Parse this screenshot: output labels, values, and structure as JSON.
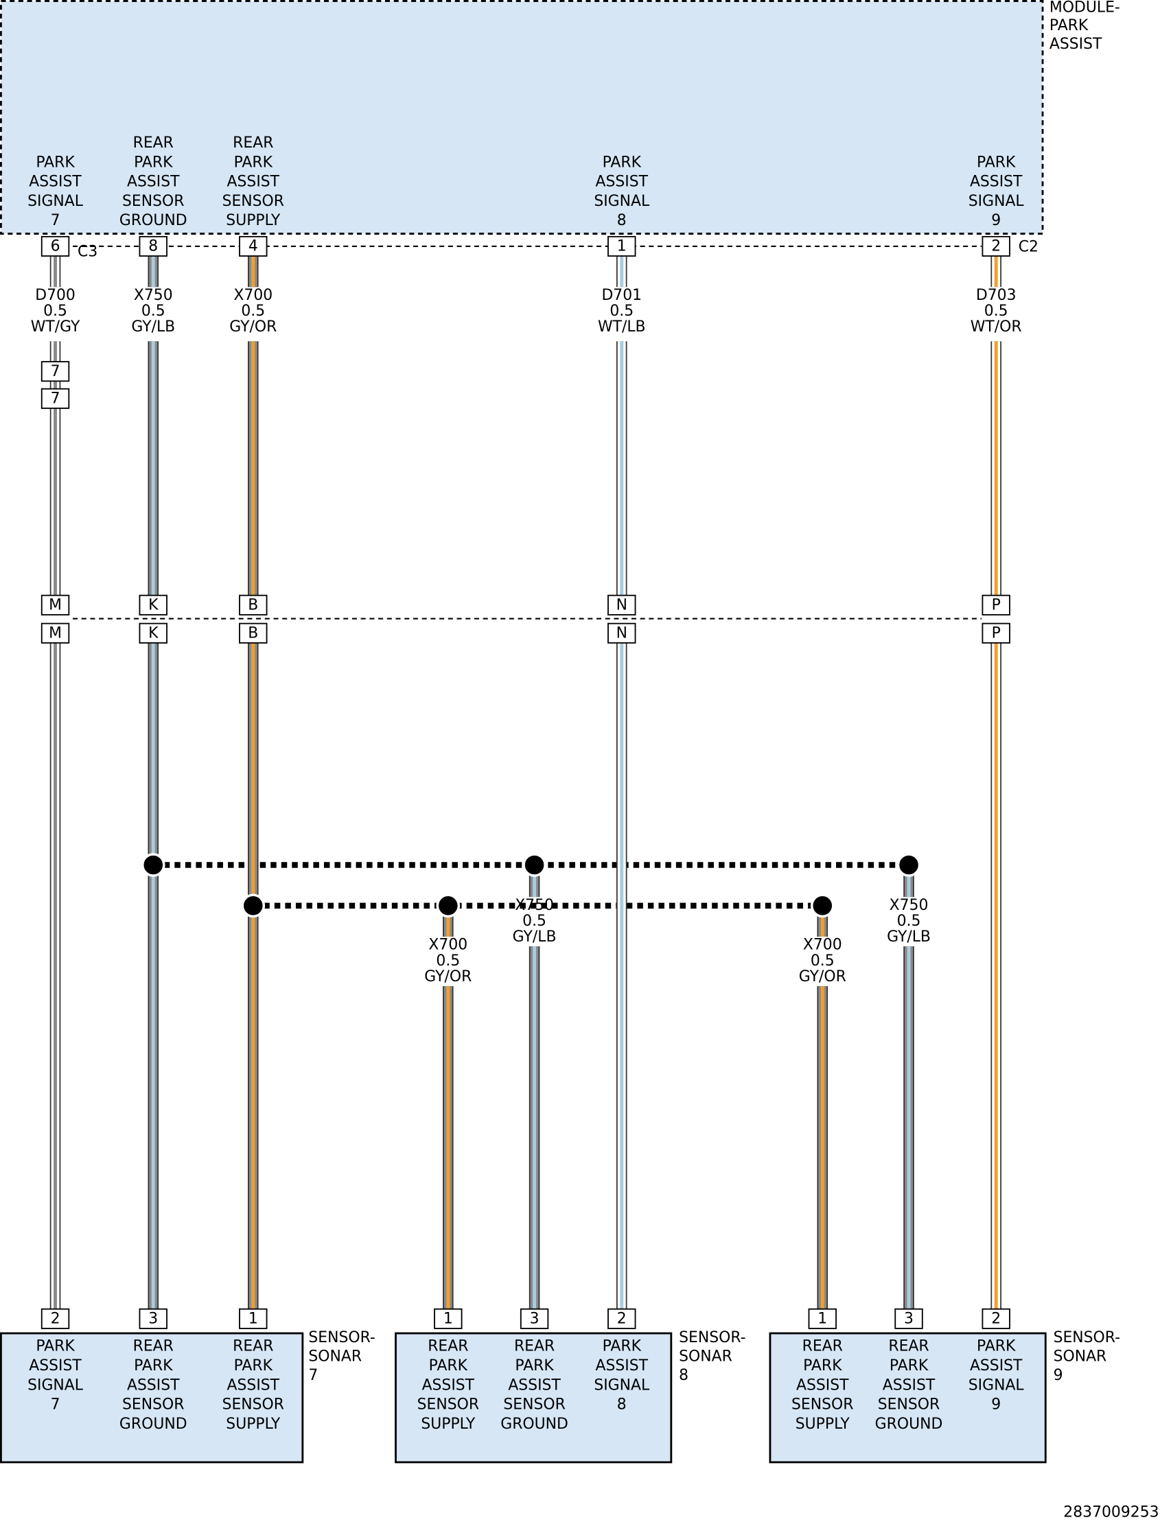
{
  "module": {
    "label": [
      "MODULE-",
      "PARK",
      "ASSIST"
    ],
    "connectors": [
      "C3",
      "C2"
    ]
  },
  "module_pins": [
    {
      "label": [
        "PARK",
        "ASSIST",
        "SIGNAL",
        "7"
      ],
      "pin": "6"
    },
    {
      "label": [
        "REAR",
        "PARK",
        "ASSIST",
        "SENSOR",
        "GROUND"
      ],
      "pin": "8"
    },
    {
      "label": [
        "REAR",
        "PARK",
        "ASSIST",
        "SENSOR",
        "SUPPLY"
      ],
      "pin": "4"
    },
    {
      "label": [
        "PARK",
        "ASSIST",
        "SIGNAL",
        "8"
      ],
      "pin": "1"
    },
    {
      "label": [
        "PARK",
        "ASSIST",
        "SIGNAL",
        "9"
      ],
      "pin": "2"
    }
  ],
  "wires": [
    {
      "circuit": "D700",
      "size": "0.5",
      "color": "WT/GY",
      "base": "#ffffff",
      "stripe": "#8a8a8a"
    },
    {
      "circuit": "X750",
      "size": "0.5",
      "color": "GY/LB",
      "base": "#8a8a8a",
      "stripe": "#a8cce0"
    },
    {
      "circuit": "X700",
      "size": "0.5",
      "color": "GY/OR",
      "base": "#8a8a8a",
      "stripe": "#f0a030"
    },
    {
      "circuit": "D701",
      "size": "0.5",
      "color": "WT/LB",
      "base": "#ffffff",
      "stripe": "#a8cce0"
    },
    {
      "circuit": "D703",
      "size": "0.5",
      "color": "WT/OR",
      "base": "#ffffff",
      "stripe": "#f0a030"
    },
    {
      "circuit": "X700",
      "size": "0.5",
      "color": "GY/OR",
      "base": "#8a8a8a",
      "stripe": "#f0a030"
    },
    {
      "circuit": "X750",
      "size": "0.5",
      "color": "GY/LB",
      "base": "#8a8a8a",
      "stripe": "#a8cce0"
    },
    {
      "circuit": "X700",
      "size": "0.5",
      "color": "GY/OR",
      "base": "#8a8a8a",
      "stripe": "#f0a030"
    },
    {
      "circuit": "X750",
      "size": "0.5",
      "color": "GY/LB",
      "base": "#8a8a8a",
      "stripe": "#a8cce0"
    }
  ],
  "inline_connector": {
    "pins": [
      "7",
      "7"
    ]
  },
  "harness_connector": {
    "pins": [
      [
        "M",
        "M"
      ],
      [
        "K",
        "K"
      ],
      [
        "B",
        "B"
      ],
      [
        "N",
        "N"
      ],
      [
        "P",
        "P"
      ]
    ]
  },
  "sensors": [
    {
      "label": [
        "SENSOR-",
        "SONAR",
        "7"
      ],
      "pins": [
        {
          "pin": "2",
          "label": [
            "PARK",
            "ASSIST",
            "SIGNAL",
            "7"
          ]
        },
        {
          "pin": "3",
          "label": [
            "REAR",
            "PARK",
            "ASSIST",
            "SENSOR",
            "GROUND"
          ]
        },
        {
          "pin": "1",
          "label": [
            "REAR",
            "PARK",
            "ASSIST",
            "SENSOR",
            "SUPPLY"
          ]
        }
      ]
    },
    {
      "label": [
        "SENSOR-",
        "SONAR",
        "8"
      ],
      "pins": [
        {
          "pin": "1",
          "label": [
            "REAR",
            "PARK",
            "ASSIST",
            "SENSOR",
            "SUPPLY"
          ]
        },
        {
          "pin": "3",
          "label": [
            "REAR",
            "PARK",
            "ASSIST",
            "SENSOR",
            "GROUND"
          ]
        },
        {
          "pin": "2",
          "label": [
            "PARK",
            "ASSIST",
            "SIGNAL",
            "8"
          ]
        }
      ]
    },
    {
      "label": [
        "SENSOR-",
        "SONAR",
        "9"
      ],
      "pins": [
        {
          "pin": "1",
          "label": [
            "REAR",
            "PARK",
            "ASSIST",
            "SENSOR",
            "SUPPLY"
          ]
        },
        {
          "pin": "3",
          "label": [
            "REAR",
            "PARK",
            "ASSIST",
            "SENSOR",
            "GROUND"
          ]
        },
        {
          "pin": "2",
          "label": [
            "PARK",
            "ASSIST",
            "SIGNAL",
            "9"
          ]
        }
      ]
    }
  ],
  "figure_id": "2837009253"
}
